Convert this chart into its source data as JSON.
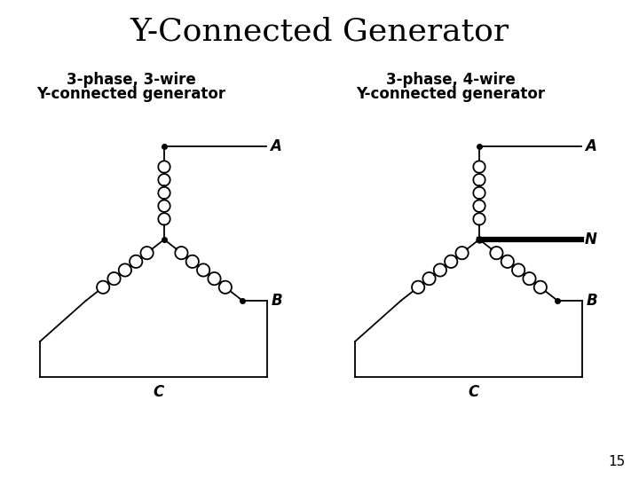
{
  "title": "Y-Connected Generator",
  "title_color": "#000000",
  "title_fontsize": 26,
  "bg_color": "#ffffff",
  "label1_line1": "3-phase, 3-wire",
  "label1_line2": "Y-connected generator",
  "label2_line1": "3-phase, 4-wire",
  "label2_line2": "Y-connected generator",
  "label_fontsize": 12,
  "page_number": "15",
  "lw": 1.3
}
